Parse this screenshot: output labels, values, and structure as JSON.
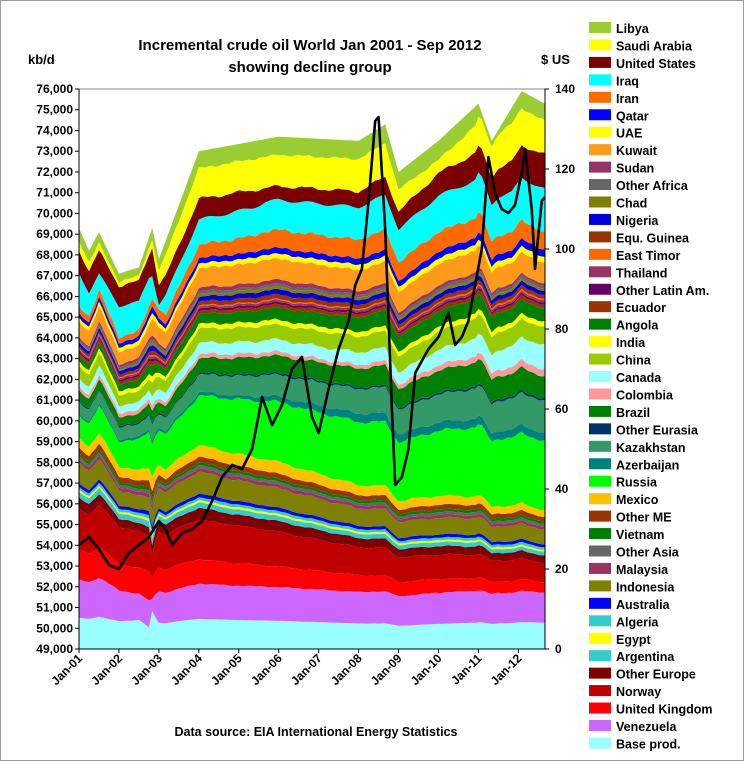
{
  "chart_data": {
    "type": "area",
    "title_line1": "Incremental crude oil World  Jan 2001 - Sep 2012",
    "title_line2": "showing decline group",
    "y_unit_left": "kb/d",
    "y_unit_right": "$ US",
    "ylim_left": [
      49000,
      76000
    ],
    "ylim_right": [
      0,
      140
    ],
    "yticks_left": [
      "49,000",
      "50,000",
      "51,000",
      "52,000",
      "53,000",
      "54,000",
      "55,000",
      "56,000",
      "57,000",
      "58,000",
      "59,000",
      "60,000",
      "61,000",
      "62,000",
      "63,000",
      "64,000",
      "65,000",
      "66,000",
      "67,000",
      "68,000",
      "69,000",
      "70,000",
      "71,000",
      "72,000",
      "73,000",
      "74,000",
      "75,000",
      "76,000"
    ],
    "yticks_right": [
      "0",
      "20",
      "40",
      "60",
      "80",
      "100",
      "120",
      "140"
    ],
    "xticks": [
      "Jan-01",
      "Jan-02",
      "Jan-03",
      "Jan-04",
      "Jan-05",
      "Jan-06",
      "Jan-07",
      "Jan-08",
      "Jan-09",
      "Jan-10",
      "Jan-11",
      "Jan-12"
    ],
    "x_range": [
      "2001-01",
      "2012-09"
    ],
    "source": "Data source: EIA International Energy Statistics",
    "legend_placement": "right",
    "stack_order_bottom_to_top": [
      "Base prod.",
      "Venezuela",
      "United Kingdom",
      "Norway",
      "Other Europe",
      "Argentina",
      "Egypt",
      "Algeria",
      "Australia",
      "Indonesia",
      "Malaysia",
      "Other Asia",
      "Vietnam",
      "Other ME",
      "Mexico",
      "Russia",
      "Azerbaijan",
      "Kazakhstan",
      "Other Eurasia",
      "Brazil",
      "Colombia",
      "Canada",
      "China",
      "India",
      "Angola",
      "Ecuador",
      "Other Latin Am.",
      "Thailand",
      "East Timor",
      "Equ. Guinea",
      "Nigeria",
      "Chad",
      "Other Africa",
      "Sudan",
      "Kuwait",
      "UAE",
      "Qatar",
      "Iran",
      "Iraq",
      "United States",
      "Saudi Arabia",
      "Libya"
    ],
    "legend": [
      {
        "name": "Libya",
        "color": "#9acd32"
      },
      {
        "name": "Saudi Arabia",
        "color": "#ffff00"
      },
      {
        "name": "United States",
        "color": "#7b0000"
      },
      {
        "name": "Iraq",
        "color": "#00ffff"
      },
      {
        "name": "Iran",
        "color": "#ff6a00"
      },
      {
        "name": "Qatar",
        "color": "#0000ff"
      },
      {
        "name": "UAE",
        "color": "#ffff00"
      },
      {
        "name": "Kuwait",
        "color": "#ff9a1a"
      },
      {
        "name": "Sudan",
        "color": "#993366"
      },
      {
        "name": "Other Africa",
        "color": "#666666"
      },
      {
        "name": "Chad",
        "color": "#808000"
      },
      {
        "name": "Nigeria",
        "color": "#0000e0"
      },
      {
        "name": "Equ. Guinea",
        "color": "#993300"
      },
      {
        "name": "East Timor",
        "color": "#ff6600"
      },
      {
        "name": "Thailand",
        "color": "#993366"
      },
      {
        "name": "Other Latin Am.",
        "color": "#660066"
      },
      {
        "name": "Ecuador",
        "color": "#993300"
      },
      {
        "name": "Angola",
        "color": "#008000"
      },
      {
        "name": "India",
        "color": "#ffff00"
      },
      {
        "name": "China",
        "color": "#99cc00"
      },
      {
        "name": "Canada",
        "color": "#99ffff"
      },
      {
        "name": "Colombia",
        "color": "#ff9999"
      },
      {
        "name": "Brazil",
        "color": "#008000"
      },
      {
        "name": "Other Eurasia",
        "color": "#003366"
      },
      {
        "name": "Kazakhstan",
        "color": "#339966"
      },
      {
        "name": "Azerbaijan",
        "color": "#008080"
      },
      {
        "name": "Russia",
        "color": "#00ff00"
      },
      {
        "name": "Mexico",
        "color": "#ffc000"
      },
      {
        "name": "Other ME",
        "color": "#993300"
      },
      {
        "name": "Vietnam",
        "color": "#008000"
      },
      {
        "name": "Other Asia",
        "color": "#666666"
      },
      {
        "name": "Malaysia",
        "color": "#993366"
      },
      {
        "name": "Indonesia",
        "color": "#808000"
      },
      {
        "name": "Australia",
        "color": "#0000ff"
      },
      {
        "name": "Algeria",
        "color": "#33cccc"
      },
      {
        "name": "Egypt",
        "color": "#ffff00"
      },
      {
        "name": "Argentina",
        "color": "#33cccc"
      },
      {
        "name": "Other Europe",
        "color": "#800000"
      },
      {
        "name": "Norway",
        "color": "#c00000"
      },
      {
        "name": "United Kingdom",
        "color": "#ff0000"
      },
      {
        "name": "Venezuela",
        "color": "#cc66ff"
      },
      {
        "name": "Base prod.",
        "color": "#99ffff"
      }
    ],
    "oil_price_series": {
      "color": "#000000",
      "axis": "right",
      "points": [
        [
          "2001-01",
          26
        ],
        [
          "2001-04",
          28
        ],
        [
          "2001-07",
          25
        ],
        [
          "2001-10",
          21
        ],
        [
          "2002-01",
          20
        ],
        [
          "2002-04",
          24
        ],
        [
          "2002-07",
          26
        ],
        [
          "2002-10",
          28
        ],
        [
          "2003-01",
          32
        ],
        [
          "2003-03",
          30
        ],
        [
          "2003-05",
          26
        ],
        [
          "2003-08",
          29
        ],
        [
          "2003-11",
          30
        ],
        [
          "2004-02",
          32
        ],
        [
          "2004-05",
          37
        ],
        [
          "2004-08",
          43
        ],
        [
          "2004-11",
          46
        ],
        [
          "2005-02",
          45
        ],
        [
          "2005-05",
          50
        ],
        [
          "2005-08",
          63
        ],
        [
          "2005-11",
          56
        ],
        [
          "2006-02",
          61
        ],
        [
          "2006-05",
          70
        ],
        [
          "2006-08",
          73
        ],
        [
          "2006-11",
          58
        ],
        [
          "2007-01",
          54
        ],
        [
          "2007-04",
          65
        ],
        [
          "2007-07",
          75
        ],
        [
          "2007-10",
          82
        ],
        [
          "2007-12",
          91
        ],
        [
          "2008-02",
          95
        ],
        [
          "2008-04",
          112
        ],
        [
          "2008-06",
          132
        ],
        [
          "2008-07",
          133
        ],
        [
          "2008-09",
          105
        ],
        [
          "2008-11",
          60
        ],
        [
          "2008-12",
          41
        ],
        [
          "2009-02",
          43
        ],
        [
          "2009-04",
          50
        ],
        [
          "2009-06",
          69
        ],
        [
          "2009-08",
          72
        ],
        [
          "2009-10",
          75
        ],
        [
          "2010-01",
          78
        ],
        [
          "2010-04",
          84
        ],
        [
          "2010-06",
          76
        ],
        [
          "2010-08",
          78
        ],
        [
          "2010-10",
          82
        ],
        [
          "2010-12",
          91
        ],
        [
          "2011-02",
          100
        ],
        [
          "2011-04",
          123
        ],
        [
          "2011-06",
          114
        ],
        [
          "2011-08",
          110
        ],
        [
          "2011-10",
          109
        ],
        [
          "2011-12",
          111
        ],
        [
          "2012-02",
          119
        ],
        [
          "2012-03",
          125
        ],
        [
          "2012-05",
          110
        ],
        [
          "2012-06",
          95
        ],
        [
          "2012-08",
          112
        ],
        [
          "2012-09",
          113
        ]
      ]
    }
  }
}
